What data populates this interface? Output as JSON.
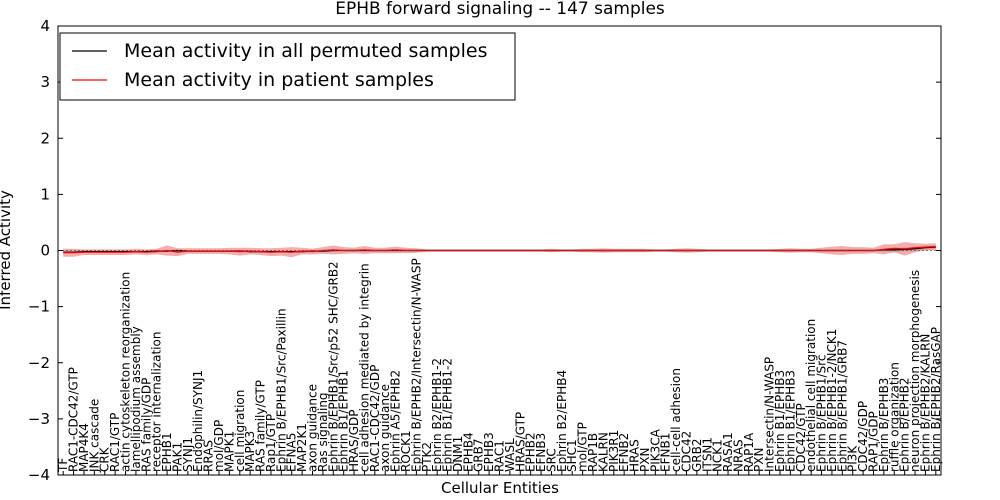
{
  "chart_data": {
    "type": "line",
    "title": "EPHB forward signaling -- 147 samples",
    "xlabel": "Cellular Entities",
    "ylabel": "Inferred Activity",
    "ylim": [
      -4,
      4
    ],
    "yticks": [
      -4,
      -3,
      -2,
      -1,
      0,
      1,
      2,
      3,
      4
    ],
    "ytick_labels": [
      "−4",
      "−3",
      "−2",
      "−1",
      "0",
      "1",
      "2",
      "3",
      "4"
    ],
    "grid": false,
    "legend_position": "top-left",
    "categories": [
      "TF",
      "RAC1-CDC42/GTP",
      "MAP4K4",
      "JNK cascade",
      "CRK",
      "RAC1/GTP",
      "actin cytoskeleton reorganization",
      "lamellipodium assembly",
      "RAS family/GDP",
      "receptor internalization",
      "EPHB1",
      "PAK1",
      "SYNJ1",
      "Endophilin/SYNJ1",
      "RRAS",
      "mol/GDP",
      "MAPK1",
      "cell migration",
      "MAPK3",
      "RAS family/GTP",
      "Rap1/GTP",
      "Ephrin B/EPHB1/Src/Paxillin",
      "EFNA5",
      "MAP2K1",
      "axon guidance",
      "Ras signaling",
      "Ephrin B/EPHB1/Src/p52 SHC/GRB2",
      "Ephrin B1/EPHB1",
      "HRAS/GDP",
      "cell adhesion mediated by integrin",
      "RAC1-CDC42/GDP",
      "axon guidance",
      "Ephrin A5/EPHB2",
      "ROCK1",
      "Ephrin B/EPHB2/Intersectin/N-WASP",
      "PTK2",
      "Ephrin B2/EPHB1-2",
      "Ephrin B1/EPHB1-2",
      "DNM1",
      "EPHB4",
      "GRB7",
      "EPHB3",
      "RAC1",
      "WASL",
      "HRAS/GTP",
      "EPHB2",
      "EFNB3",
      "SRC",
      "Ephrin B2/EPHB4",
      "SHC1",
      "mol/GTP",
      "RAP1B",
      "KALRN",
      "PIK3R1",
      "EFNB2",
      "HRAS",
      "PXN",
      "PIK3CA",
      "EFNB1",
      "cell-cell adhesion",
      "CDC42",
      "GRB2",
      "ITSN1",
      "NCK1",
      "RASA1",
      "NRAS",
      "RAP1A",
      "PXN",
      "Intersectin/N-WASP",
      "Ephrin B1/EPHB3",
      "Ephrin B1/EPHB3",
      "CDC42/GTP",
      "endothelial cell migration",
      "Ephrin B/EPHB1/Src",
      "Ephrin B/EPHB1-2/NCK1",
      "Ephrin B/EPHB1/GRB7",
      "PI3K",
      "CDC42/GDP",
      "RAP1/GDP",
      "Ephrin B/EPHB3",
      "ruffle organization",
      "Ephrin B/EPHB2",
      "neuron projection morphogenesis",
      "Ephrin B/EPHB2/KALRN",
      "Ephrin B/EPHB2/RasGAP"
    ],
    "series": [
      {
        "name": "Mean activity in all permuted samples",
        "color": "#000000",
        "band_color": "#bdbdbd",
        "values": [
          -0.03,
          -0.03,
          -0.02,
          -0.02,
          -0.02,
          -0.02,
          -0.02,
          -0.02,
          -0.02,
          -0.01,
          -0.01,
          0.0,
          -0.01,
          -0.01,
          -0.01,
          -0.01,
          -0.01,
          -0.01,
          -0.02,
          -0.02,
          -0.02,
          -0.02,
          -0.02,
          -0.02,
          -0.01,
          -0.01,
          0.0,
          0.0,
          0.0,
          0.0,
          0.0,
          0.0,
          0.0,
          0.0,
          0.0,
          0.0,
          0.0,
          0.0,
          0.0,
          0.0,
          0.0,
          0.0,
          0.0,
          0.0,
          0.0,
          0.0,
          0.0,
          0.0,
          0.0,
          0.0,
          0.0,
          0.0,
          0.0,
          0.0,
          0.0,
          0.0,
          0.0,
          0.0,
          0.0,
          0.0,
          0.0,
          0.0,
          0.0,
          0.0,
          0.0,
          0.0,
          0.0,
          0.0,
          0.0,
          0.0,
          0.0,
          0.0,
          0.0,
          0.0,
          0.0,
          0.0,
          0.0,
          0.0,
          0.0,
          0.01,
          0.01,
          0.02,
          0.03,
          0.05,
          0.06
        ],
        "band": [
          0.02,
          0.02,
          0.02,
          0.02,
          0.02,
          0.02,
          0.02,
          0.02,
          0.02,
          0.02,
          0.02,
          0.02,
          0.02,
          0.02,
          0.02,
          0.02,
          0.02,
          0.02,
          0.02,
          0.02,
          0.02,
          0.02,
          0.02,
          0.02,
          0.02,
          0.02,
          0.02,
          0.02,
          0.02,
          0.02,
          0.02,
          0.02,
          0.02,
          0.02,
          0.02,
          0.02,
          0.02,
          0.02,
          0.02,
          0.02,
          0.02,
          0.02,
          0.02,
          0.02,
          0.02,
          0.02,
          0.02,
          0.02,
          0.02,
          0.02,
          0.02,
          0.02,
          0.02,
          0.02,
          0.02,
          0.02,
          0.02,
          0.02,
          0.02,
          0.02,
          0.02,
          0.02,
          0.02,
          0.02,
          0.02,
          0.02,
          0.02,
          0.02,
          0.02,
          0.02,
          0.02,
          0.02,
          0.02,
          0.02,
          0.02,
          0.02,
          0.02,
          0.02,
          0.02,
          0.03,
          0.04,
          0.04,
          0.04,
          0.04,
          0.04
        ]
      },
      {
        "name": "Mean activity in patient samples",
        "color": "#ff0000",
        "band_color": "#f08080",
        "values": [
          -0.04,
          -0.04,
          -0.03,
          -0.03,
          -0.03,
          -0.03,
          -0.03,
          -0.02,
          -0.03,
          -0.02,
          0.0,
          -0.03,
          -0.01,
          -0.01,
          -0.01,
          -0.01,
          -0.01,
          -0.02,
          -0.01,
          -0.02,
          -0.03,
          -0.02,
          -0.03,
          -0.01,
          -0.02,
          0.0,
          0.01,
          0.0,
          0.0,
          0.01,
          0.0,
          0.0,
          0.01,
          0.0,
          0.0,
          0.0,
          0.0,
          0.0,
          0.0,
          0.0,
          0.0,
          0.0,
          0.0,
          0.0,
          0.0,
          0.0,
          0.0,
          0.0,
          0.0,
          0.0,
          0.0,
          0.0,
          0.0,
          0.0,
          0.0,
          0.0,
          0.0,
          0.0,
          0.0,
          0.0,
          0.0,
          0.0,
          0.0,
          0.0,
          0.0,
          0.0,
          0.0,
          0.0,
          0.0,
          0.0,
          0.0,
          0.0,
          0.0,
          0.0,
          0.0,
          0.0,
          0.0,
          0.0,
          0.0,
          0.02,
          0.04,
          0.03,
          0.05,
          0.06,
          0.07
        ],
        "band": [
          0.07,
          0.07,
          0.05,
          0.05,
          0.05,
          0.05,
          0.05,
          0.05,
          0.05,
          0.05,
          0.09,
          0.07,
          0.05,
          0.05,
          0.05,
          0.05,
          0.06,
          0.07,
          0.06,
          0.06,
          0.07,
          0.07,
          0.09,
          0.06,
          0.05,
          0.06,
          0.08,
          0.06,
          0.05,
          0.07,
          0.05,
          0.05,
          0.06,
          0.05,
          0.04,
          0.02,
          0.02,
          0.02,
          0.02,
          0.02,
          0.02,
          0.02,
          0.02,
          0.02,
          0.02,
          0.02,
          0.02,
          0.03,
          0.02,
          0.02,
          0.03,
          0.03,
          0.04,
          0.03,
          0.03,
          0.03,
          0.03,
          0.02,
          0.02,
          0.03,
          0.04,
          0.03,
          0.02,
          0.02,
          0.02,
          0.02,
          0.02,
          0.02,
          0.02,
          0.03,
          0.04,
          0.03,
          0.03,
          0.05,
          0.07,
          0.08,
          0.06,
          0.06,
          0.05,
          0.09,
          0.07,
          0.12,
          0.08,
          0.06,
          0.06
        ]
      }
    ]
  }
}
